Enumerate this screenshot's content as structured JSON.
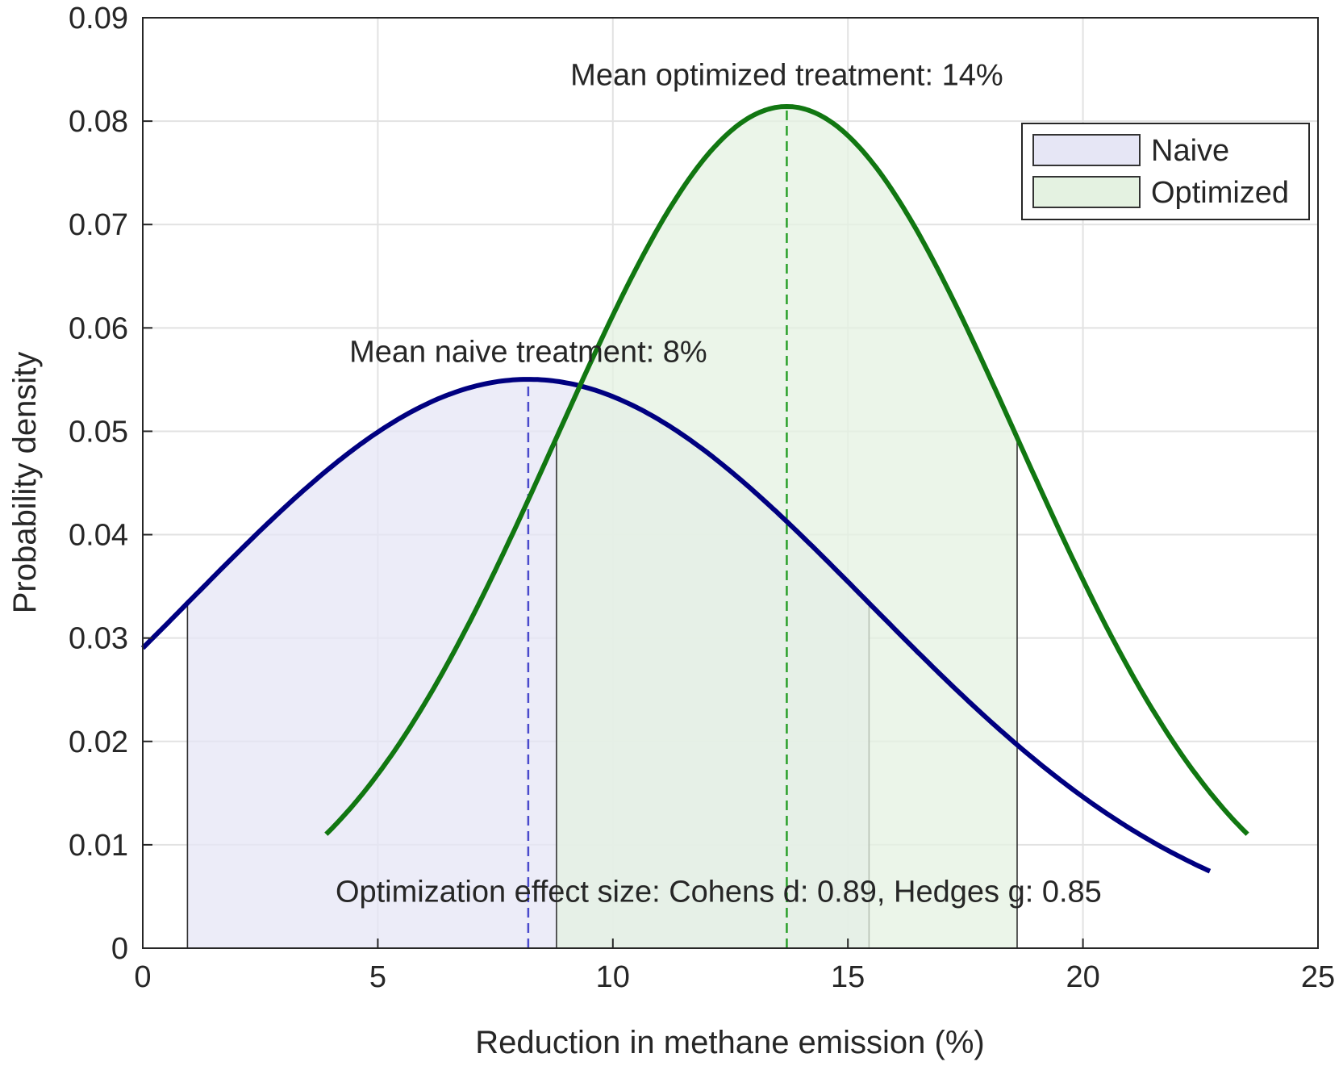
{
  "chart_data": {
    "type": "area",
    "xlabel": "Reduction in methane emission (%)",
    "ylabel": "Probability density",
    "xlim": [
      0,
      25
    ],
    "ylim": [
      0,
      0.09
    ],
    "xticks": [
      0,
      5,
      10,
      15,
      20,
      25
    ],
    "xtick_labels": [
      "0",
      "5",
      "10",
      "15",
      "20",
      "25"
    ],
    "yticks": [
      0,
      0.01,
      0.02,
      0.03,
      0.04,
      0.05,
      0.06,
      0.07,
      0.08,
      0.09
    ],
    "ytick_labels": [
      "0",
      "0.01",
      "0.02",
      "0.03",
      "0.04",
      "0.05",
      "0.06",
      "0.07",
      "0.08",
      "0.09"
    ],
    "grid": true,
    "legend_position": "top-right",
    "series": [
      {
        "name": "Naive",
        "distribution": "normal",
        "mean": 8.2,
        "sd": 7.25,
        "x_range": [
          0,
          22.7
        ],
        "shaded_interval": [
          0.95,
          15.45
        ],
        "line_color": "#000080",
        "fill_color": "#e6e6f5"
      },
      {
        "name": "Optimized",
        "distribution": "normal",
        "mean": 13.7,
        "sd": 4.9,
        "x_range": [
          3.9,
          23.5
        ],
        "shaded_interval": [
          8.8,
          18.6
        ],
        "line_color": "#117711",
        "fill_color": "#e4f2e1"
      }
    ],
    "mean_lines": [
      {
        "x": 8.2,
        "color": "#4a4acc"
      },
      {
        "x": 13.7,
        "color": "#2aa02a"
      }
    ],
    "annotations": [
      {
        "text": "Mean optimized treatment: 14%",
        "x": 13.7,
        "y": 0.0835
      },
      {
        "text": "Mean naive treatment: 8%",
        "x": 8.2,
        "y": 0.0567
      },
      {
        "text": "Optimization effect size: Cohens d: 0.89, Hedges g: 0.85",
        "x": 4.1,
        "y": 0.0045
      }
    ]
  }
}
